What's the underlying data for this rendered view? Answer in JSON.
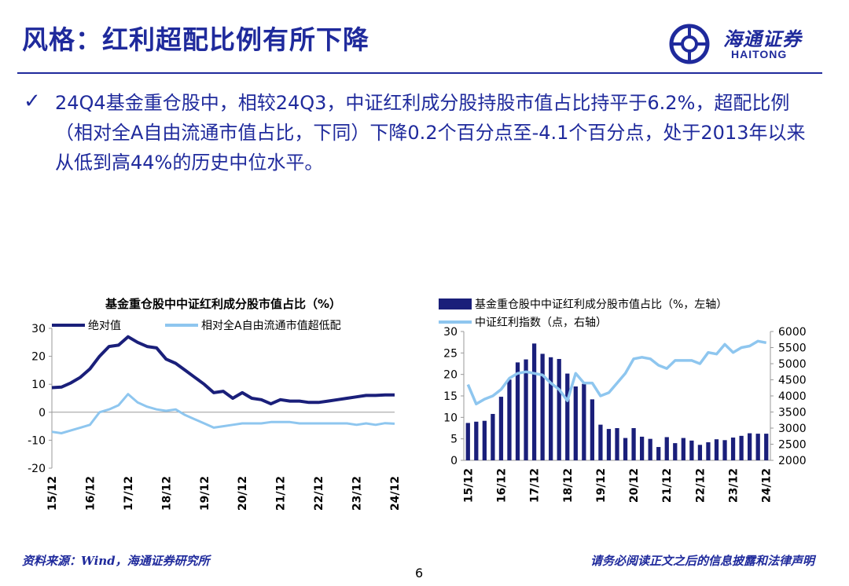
{
  "header": {
    "title": "风格：红利超配比例有所下降",
    "logo_cn": "海通证券",
    "logo_en": "HAITONG"
  },
  "bullet": {
    "text": "24Q4基金重仓股中，相较24Q3，中证红利成分股持股市值占比持平于6.2%，超配比例（相对全A自由流通市值占比，下同）下降0.2个百分点至-4.1个百分点，处于2013年以来从低到高44%的历史中位水平。"
  },
  "footer": {
    "source": "资料来源：Wind，海通证券研究所",
    "disclaimer": "请务必阅读正文之后的信息披露和法律声明",
    "page_number": "6"
  },
  "colors": {
    "brand": "#1f2a9c",
    "dark_series": "#1a1f7a",
    "light_series": "#8ec6ef"
  },
  "chart_data": [
    {
      "type": "line",
      "title": "基金重仓股中中证红利成分股市值占比（%）",
      "x": [
        "15/12",
        "16/03",
        "16/06",
        "16/09",
        "16/12",
        "17/03",
        "17/06",
        "17/09",
        "17/12",
        "18/03",
        "18/06",
        "18/09",
        "18/12",
        "19/03",
        "19/06",
        "19/09",
        "19/12",
        "20/03",
        "20/06",
        "20/09",
        "20/12",
        "21/03",
        "21/06",
        "21/09",
        "21/12",
        "22/03",
        "22/06",
        "22/09",
        "22/12",
        "23/03",
        "23/06",
        "23/09",
        "23/12",
        "24/03",
        "24/06",
        "24/09",
        "24/12"
      ],
      "x_tick_labels": [
        "15/12",
        "16/12",
        "17/12",
        "18/12",
        "19/12",
        "20/12",
        "21/12",
        "22/12",
        "23/12",
        "24/12"
      ],
      "series": [
        {
          "name": "绝对值",
          "color": "#1a1f7a",
          "values": [
            8.8,
            9.0,
            10.5,
            12.5,
            15.5,
            20.0,
            23.5,
            24.0,
            27.0,
            25.0,
            23.5,
            23.0,
            19.0,
            17.5,
            15.0,
            12.5,
            10.0,
            7.0,
            7.5,
            5.0,
            7.0,
            5.0,
            4.5,
            3.0,
            4.5,
            4.0,
            4.0,
            3.5,
            3.5,
            4.0,
            4.5,
            5.0,
            5.5,
            6.0,
            6.0,
            6.2,
            6.2
          ]
        },
        {
          "name": "相对全A自由流通市值超低配",
          "color": "#8ec6ef",
          "values": [
            -7.0,
            -7.5,
            -6.5,
            -5.5,
            -4.5,
            0.0,
            1.0,
            2.5,
            6.5,
            3.5,
            2.0,
            1.0,
            0.5,
            1.0,
            -1.0,
            -2.5,
            -4.0,
            -5.5,
            -5.0,
            -4.5,
            -4.0,
            -4.0,
            -4.0,
            -3.5,
            -3.5,
            -3.5,
            -4.0,
            -4.0,
            -4.0,
            -4.0,
            -4.0,
            -4.0,
            -4.5,
            -4.0,
            -4.5,
            -3.9,
            -4.1
          ]
        }
      ],
      "ylim": [
        -20,
        30
      ],
      "y_ticks": [
        -20,
        -10,
        0,
        10,
        20,
        30
      ],
      "legend": "top"
    },
    {
      "type": "bar",
      "x": [
        "15/12",
        "16/03",
        "16/06",
        "16/09",
        "16/12",
        "17/03",
        "17/06",
        "17/09",
        "17/12",
        "18/03",
        "18/06",
        "18/09",
        "18/12",
        "19/03",
        "19/06",
        "19/09",
        "19/12",
        "20/03",
        "20/06",
        "20/09",
        "20/12",
        "21/03",
        "21/06",
        "21/09",
        "21/12",
        "22/03",
        "22/06",
        "22/09",
        "22/12",
        "23/03",
        "23/06",
        "23/09",
        "23/12",
        "24/03",
        "24/06",
        "24/09",
        "24/12"
      ],
      "x_tick_labels": [
        "15/12",
        "16/12",
        "17/12",
        "18/12",
        "19/12",
        "20/12",
        "21/12",
        "22/12",
        "23/12",
        "24/12"
      ],
      "series": [
        {
          "name": "基金重仓股中中证红利成分股市值占比（%，左轴）",
          "type": "bar",
          "axis": "left",
          "color": "#1a1f7a",
          "values": [
            8.7,
            9.0,
            9.2,
            10.8,
            14.8,
            18.8,
            22.8,
            23.5,
            27.2,
            24.8,
            24.0,
            23.6,
            20.2,
            17.2,
            17.8,
            14.2,
            8.3,
            7.3,
            7.5,
            5.2,
            7.5,
            5.5,
            5.0,
            3.1,
            5.4,
            4.0,
            5.2,
            4.6,
            3.6,
            4.2,
            4.9,
            4.7,
            5.3,
            5.7,
            6.3,
            6.2,
            6.2
          ]
        },
        {
          "name": "中证红利指数（点，右轴）",
          "type": "line",
          "axis": "right",
          "color": "#8ec6ef",
          "values": [
            4350,
            3750,
            3900,
            4000,
            4200,
            4550,
            4700,
            4750,
            4700,
            4650,
            4400,
            4200,
            3850,
            4700,
            4400,
            4400,
            4000,
            4100,
            4400,
            4700,
            5150,
            5200,
            5150,
            4950,
            4850,
            5100,
            5100,
            5100,
            5000,
            5350,
            5300,
            5600,
            5350,
            5500,
            5550,
            5700,
            5650
          ]
        }
      ],
      "ylim_left": [
        0,
        30
      ],
      "ylim_right": [
        2000,
        6000
      ],
      "y_ticks_left": [
        0,
        5,
        10,
        15,
        20,
        25,
        30
      ],
      "y_ticks_right": [
        2000,
        2500,
        3000,
        3500,
        4000,
        4500,
        5000,
        5500,
        6000
      ],
      "legend": "top"
    }
  ]
}
